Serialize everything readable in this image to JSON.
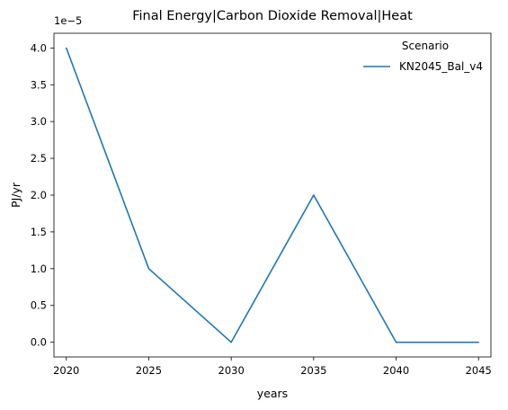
{
  "chart_data": {
    "type": "line",
    "title": "Final Energy|Carbon Dioxide Removal|Heat",
    "xlabel": "years",
    "ylabel": "PJ/yr",
    "offset_text": "1e−5",
    "x": [
      2020,
      2025,
      2030,
      2035,
      2040,
      2045
    ],
    "series": [
      {
        "name": "KN2045_Bal_v4",
        "color": "#1f77b4",
        "values": [
          4e-05,
          1e-05,
          0.0,
          2e-05,
          0.0,
          0.0
        ]
      }
    ],
    "xlim": [
      2019.25,
      2045.75
    ],
    "ylim": [
      -2e-06,
      4.2e-05
    ],
    "x_ticks": [
      2020,
      2025,
      2030,
      2035,
      2040,
      2045
    ],
    "x_tick_labels": [
      "2020",
      "2025",
      "2030",
      "2035",
      "2040",
      "2045"
    ],
    "y_ticks": [
      0.0,
      5e-06,
      1e-05,
      1.5e-05,
      2e-05,
      2.5e-05,
      3e-05,
      3.5e-05,
      4e-05
    ],
    "y_tick_labels": [
      "0.0",
      "0.5",
      "1.0",
      "1.5",
      "2.0",
      "2.5",
      "3.0",
      "3.5",
      "4.0"
    ],
    "grid": false,
    "legend": {
      "title": "Scenario",
      "placement": "top-right"
    }
  }
}
